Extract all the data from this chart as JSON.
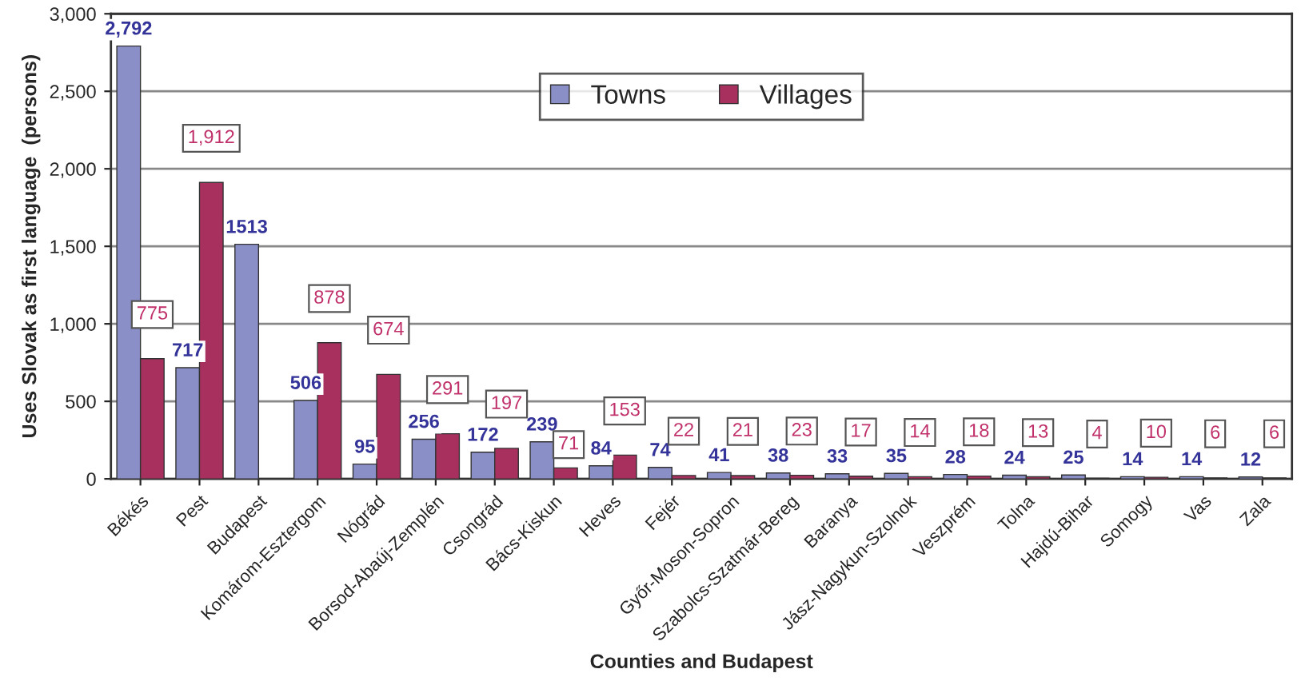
{
  "chart_data": {
    "type": "bar",
    "xlabel": "Counties and Budapest",
    "ylabel": "Uses Slovak as first language  (persons)",
    "categories": [
      "Békés",
      "Pest",
      "Budapest",
      "Komárom-Esztergom",
      "Nógrád",
      "Borsod-Abaúj-Zemplén",
      "Csongrád",
      "Bács-Kiskun",
      "Heves",
      "Fejér",
      "Győr-Moson-Sopron",
      "Szabolcs-Szatmár-Bereg",
      "Baranya",
      "Jász-Nagykun-Szolnok",
      "Veszprém",
      "Tolna",
      "Hajdú-Bihar",
      "Somogy",
      "Vas",
      "Zala"
    ],
    "series": [
      {
        "name": "Towns",
        "color": "#8a8fc8",
        "values": [
          2792,
          717,
          1513,
          506,
          95,
          256,
          172,
          239,
          84,
          74,
          41,
          38,
          33,
          35,
          28,
          24,
          25,
          14,
          14,
          12
        ],
        "value_labels": [
          "2,792",
          "717",
          "1513",
          "506",
          "95",
          "256",
          "172",
          "239",
          "84",
          "74",
          "41",
          "38",
          "33",
          "35",
          "28",
          "24",
          "25",
          "14",
          "14",
          "12"
        ]
      },
      {
        "name": "Villages",
        "color": "#a8305f",
        "values": [
          775,
          1912,
          null,
          878,
          674,
          291,
          197,
          71,
          153,
          22,
          21,
          23,
          17,
          14,
          18,
          13,
          4,
          10,
          6,
          6
        ],
        "value_labels": [
          "775",
          "1,912",
          null,
          "878",
          "674",
          "291",
          "197",
          "71",
          "153",
          "22",
          "21",
          "23",
          "17",
          "14",
          "18",
          "13",
          "4",
          "10",
          "6",
          "6"
        ]
      }
    ],
    "ylim": [
      0,
      3000
    ],
    "yticks": [
      0,
      500,
      {
        "value": 1000,
        "label": "1,000"
      },
      {
        "value": 1500,
        "label": "1,500"
      },
      {
        "value": 2000,
        "label": "2,000"
      },
      {
        "value": 2500,
        "label": "2,500"
      },
      {
        "value": 3000,
        "label": "3,000"
      }
    ],
    "grid": "y",
    "legend": "top"
  }
}
